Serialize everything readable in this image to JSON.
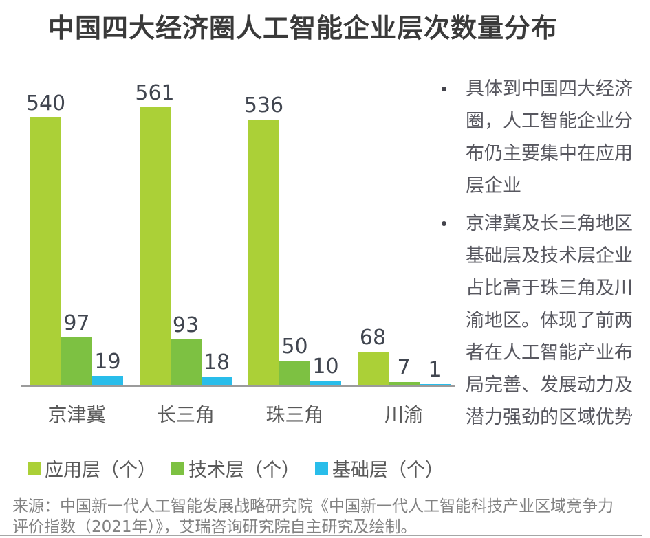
{
  "title": "中国四大经济圈人工智能企业层次数量分布",
  "chart_data": {
    "type": "bar",
    "title": "中国四大经济圈人工智能企业层次数量分布",
    "categories": [
      "京津冀",
      "长三角",
      "珠三角",
      "川渝"
    ],
    "series": [
      {
        "name": "应用层（个）",
        "color": "#abd037",
        "values": [
          540,
          561,
          536,
          68
        ]
      },
      {
        "name": "技术层（个）",
        "color": "#7dc142",
        "values": [
          97,
          93,
          50,
          7
        ]
      },
      {
        "name": "基础层（个）",
        "color": "#29bdea",
        "values": [
          19,
          18,
          10,
          1
        ]
      }
    ],
    "xlabel": "",
    "ylabel": "",
    "ylim": [
      0,
      600
    ],
    "grid": false,
    "value_labels": true,
    "legend_position": "bottom"
  },
  "insights": {
    "bullets": [
      {
        "lines": [
          "具体到中国四大经济",
          "圈，人工智能企业分",
          "布仍主要集中在应用",
          "层企业"
        ]
      },
      {
        "lines": [
          "京津冀及长三角地区",
          "基础层及技术层企业",
          "占比高于珠三角及川",
          "渝地区。体现了前两",
          "者在人工智能产业布",
          "局完善、发展动力及",
          "潜力强劲的区域优势"
        ]
      }
    ]
  },
  "source": {
    "lines": [
      "来源：中国新一代人工智能发展战略研究院《中国新一代人工智能科技产业区域竞争力",
      "评价指数（2021年）》，艾瑞咨询研究院自主研究及绘制。"
    ]
  },
  "colors": {
    "title_text": "#3a3a3a",
    "value_label_text": "#414650",
    "axis_text": "#595959",
    "insight_text": "#57575f",
    "source_text": "#828282",
    "axis_line": "#9b9b9b"
  }
}
